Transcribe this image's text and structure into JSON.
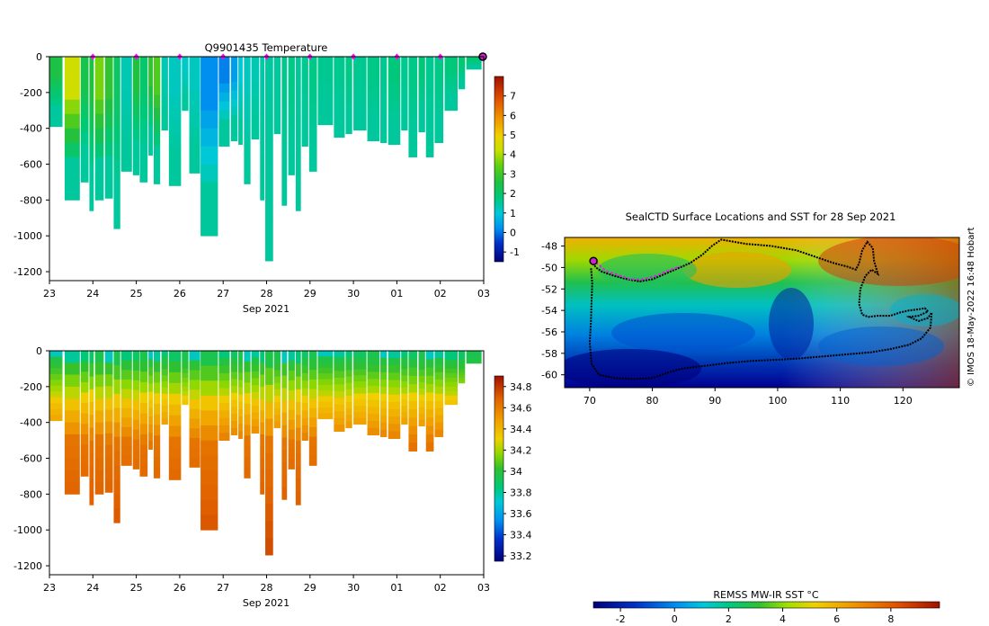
{
  "chart_data": [
    {
      "type": "heatmap",
      "title": "Q9901435  Temperature",
      "xlabel": "Sep 2021",
      "ylabel": "",
      "x_tick_labels": [
        "23",
        "24",
        "25",
        "26",
        "27",
        "28",
        "29",
        "30",
        "01",
        "02",
        "03"
      ],
      "y_tick_labels": [
        "0",
        "-200",
        "-400",
        "-600",
        "-800",
        "-1000",
        "-1200"
      ],
      "ylim": [
        -1250,
        0
      ],
      "colorbar": {
        "min": -1.5,
        "max": 8,
        "ticks": [
          "-1",
          "0",
          "1",
          "2",
          "3",
          "4",
          "5",
          "6",
          "7"
        ]
      },
      "profiles": [
        {
          "x": 0.0,
          "w": 0.3,
          "depth": 390,
          "surf": 2.5
        },
        {
          "x": 0.35,
          "w": 0.35,
          "depth": 800,
          "surf": 4.3
        },
        {
          "x": 0.72,
          "w": 0.18,
          "depth": 700,
          "surf": 2.4
        },
        {
          "x": 0.92,
          "w": 0.1,
          "depth": 860,
          "surf": 2.6
        },
        {
          "x": 1.05,
          "w": 0.2,
          "depth": 800,
          "surf": 3.6
        },
        {
          "x": 1.28,
          "w": 0.18,
          "depth": 790,
          "surf": 2.8
        },
        {
          "x": 1.48,
          "w": 0.15,
          "depth": 960,
          "surf": 2.1
        },
        {
          "x": 1.65,
          "w": 0.25,
          "depth": 640,
          "surf": 1.3
        },
        {
          "x": 1.92,
          "w": 0.15,
          "depth": 660,
          "surf": 2.6
        },
        {
          "x": 2.08,
          "w": 0.18,
          "depth": 700,
          "surf": 2.0
        },
        {
          "x": 2.28,
          "w": 0.1,
          "depth": 550,
          "surf": 2.8
        },
        {
          "x": 2.4,
          "w": 0.15,
          "depth": 710,
          "surf": 3.2
        },
        {
          "x": 2.58,
          "w": 0.15,
          "depth": 410,
          "surf": 1.3
        },
        {
          "x": 2.75,
          "w": 0.28,
          "depth": 720,
          "surf": 1.2
        },
        {
          "x": 3.05,
          "w": 0.15,
          "depth": 300,
          "surf": 1.1
        },
        {
          "x": 3.22,
          "w": 0.25,
          "depth": 650,
          "surf": 1.2
        },
        {
          "x": 3.48,
          "w": 0.4,
          "depth": 1000,
          "surf": 0.2
        },
        {
          "x": 3.9,
          "w": 0.25,
          "depth": 500,
          "surf": 0.1
        },
        {
          "x": 4.18,
          "w": 0.15,
          "depth": 470,
          "surf": 0.4
        },
        {
          "x": 4.35,
          "w": 0.1,
          "depth": 490,
          "surf": 1.0
        },
        {
          "x": 4.48,
          "w": 0.15,
          "depth": 710,
          "surf": 1.2
        },
        {
          "x": 4.65,
          "w": 0.18,
          "depth": 460,
          "surf": 1.3
        },
        {
          "x": 4.85,
          "w": 0.1,
          "depth": 800,
          "surf": 1.4
        },
        {
          "x": 4.97,
          "w": 0.18,
          "depth": 1140,
          "surf": 1.5
        },
        {
          "x": 5.17,
          "w": 0.15,
          "depth": 430,
          "surf": 1.5
        },
        {
          "x": 5.35,
          "w": 0.12,
          "depth": 830,
          "surf": 1.6
        },
        {
          "x": 5.5,
          "w": 0.15,
          "depth": 660,
          "surf": 1.7
        },
        {
          "x": 5.67,
          "w": 0.12,
          "depth": 860,
          "surf": 1.5
        },
        {
          "x": 5.81,
          "w": 0.15,
          "depth": 500,
          "surf": 1.6
        },
        {
          "x": 5.98,
          "w": 0.18,
          "depth": 640,
          "surf": 1.7
        },
        {
          "x": 6.18,
          "w": 0.35,
          "depth": 380,
          "surf": 1.6
        },
        {
          "x": 6.55,
          "w": 0.25,
          "depth": 450,
          "surf": 1.6
        },
        {
          "x": 6.82,
          "w": 0.15,
          "depth": 430,
          "surf": 1.7
        },
        {
          "x": 7.0,
          "w": 0.3,
          "depth": 410,
          "surf": 1.6
        },
        {
          "x": 7.32,
          "w": 0.28,
          "depth": 470,
          "surf": 1.7
        },
        {
          "x": 7.62,
          "w": 0.15,
          "depth": 480,
          "surf": 1.6
        },
        {
          "x": 7.8,
          "w": 0.28,
          "depth": 490,
          "surf": 1.8
        },
        {
          "x": 8.1,
          "w": 0.15,
          "depth": 410,
          "surf": 1.6
        },
        {
          "x": 8.27,
          "w": 0.2,
          "depth": 560,
          "surf": 1.7
        },
        {
          "x": 8.5,
          "w": 0.15,
          "depth": 420,
          "surf": 1.8
        },
        {
          "x": 8.67,
          "w": 0.18,
          "depth": 560,
          "surf": 1.6
        },
        {
          "x": 8.87,
          "w": 0.2,
          "depth": 480,
          "surf": 1.7
        },
        {
          "x": 9.1,
          "w": 0.3,
          "depth": 300,
          "surf": 1.8
        },
        {
          "x": 9.42,
          "w": 0.15,
          "depth": 180,
          "surf": 1.9
        },
        {
          "x": 9.6,
          "w": 0.35,
          "depth": 70,
          "surf": 1.9
        }
      ],
      "marker_days": [
        1,
        2,
        3,
        4,
        5,
        6,
        7,
        8,
        9
      ]
    },
    {
      "type": "heatmap",
      "title": "",
      "xlabel": "Sep 2021",
      "ylabel": "",
      "variable": "salinity",
      "x_tick_labels": [
        "23",
        "24",
        "25",
        "26",
        "27",
        "28",
        "29",
        "30",
        "01",
        "02",
        "03"
      ],
      "y_tick_labels": [
        "0",
        "-200",
        "-400",
        "-600",
        "-800",
        "-1000",
        "-1200"
      ],
      "ylim": [
        -1250,
        0
      ],
      "colorbar": {
        "min": 33.15,
        "max": 34.9,
        "ticks": [
          "33.2",
          "33.4",
          "33.6",
          "33.8",
          "34",
          "34.2",
          "34.4",
          "34.6",
          "34.8"
        ]
      }
    },
    {
      "type": "heatmap",
      "title": "SealCTD Surface Locations and SST for 28 Sep 2021",
      "xlabel": "",
      "ylabel": "",
      "x_tick_labels": [
        "70",
        "80",
        "90",
        "100",
        "110",
        "120"
      ],
      "y_tick_labels": [
        "-48",
        "-50",
        "-52",
        "-54",
        "-56",
        "-58",
        "-60"
      ],
      "xlim": [
        66,
        129
      ],
      "ylim": [
        -61.2,
        -47.2
      ],
      "credit": "© IMOS 18-May-2022 16:48 Hobart",
      "colorbar": {
        "label": "REMSS MW-IR SST °C",
        "min": -3,
        "max": 9.8,
        "ticks": [
          "-2",
          "0",
          "2",
          "4",
          "6",
          "8"
        ]
      },
      "track": [
        [
          70.5,
          -49.6
        ],
        [
          71,
          -50
        ],
        [
          72,
          -50.4
        ],
        [
          74,
          -50.8
        ],
        [
          76,
          -51.1
        ],
        [
          78,
          -51.3
        ],
        [
          80,
          -51.1
        ],
        [
          82,
          -50.6
        ],
        [
          84,
          -50.1
        ],
        [
          86,
          -49.6
        ],
        [
          88,
          -48.8
        ],
        [
          89.5,
          -48.0
        ],
        [
          91,
          -47.4
        ],
        [
          93,
          -47.6
        ],
        [
          95,
          -47.8
        ],
        [
          97,
          -47.9
        ],
        [
          99,
          -48.0
        ],
        [
          101,
          -48.2
        ],
        [
          103,
          -48.4
        ],
        [
          105,
          -48.8
        ],
        [
          107,
          -49.2
        ],
        [
          109,
          -49.6
        ],
        [
          111,
          -49.9
        ],
        [
          112.5,
          -50.2
        ],
        [
          113,
          -49.6
        ],
        [
          113.5,
          -48.4
        ],
        [
          114.3,
          -47.6
        ],
        [
          115.2,
          -48.2
        ],
        [
          115.4,
          -49.4
        ],
        [
          116,
          -50.6
        ],
        [
          115,
          -50.2
        ],
        [
          114,
          -50.8
        ],
        [
          113.2,
          -52.0
        ],
        [
          113,
          -53.4
        ],
        [
          113.5,
          -54.4
        ],
        [
          114.5,
          -54.6
        ],
        [
          116,
          -54.5
        ],
        [
          118,
          -54.5
        ],
        [
          119.5,
          -54.2
        ],
        [
          121,
          -54.0
        ],
        [
          122.5,
          -53.9
        ],
        [
          123.5,
          -53.8
        ],
        [
          124,
          -54.1
        ],
        [
          122.5,
          -54.5
        ],
        [
          121,
          -54.6
        ],
        [
          122.5,
          -55.0
        ],
        [
          124,
          -54.7
        ],
        [
          124.6,
          -54.2
        ],
        [
          124.4,
          -55.6
        ],
        [
          123,
          -56.6
        ],
        [
          121,
          -57.2
        ],
        [
          118,
          -57.6
        ],
        [
          115,
          -57.9
        ],
        [
          111,
          -58.1
        ],
        [
          107,
          -58.3
        ],
        [
          103,
          -58.5
        ],
        [
          100,
          -58.6
        ],
        [
          96,
          -58.7
        ],
        [
          92,
          -58.9
        ],
        [
          88,
          -59.2
        ],
        [
          85,
          -59.4
        ],
        [
          83,
          -59.7
        ],
        [
          80,
          -60.3
        ],
        [
          77,
          -60.4
        ],
        [
          74,
          -60.3
        ],
        [
          71.5,
          -60.0
        ],
        [
          70.3,
          -59.0
        ],
        [
          70.0,
          -57.0
        ],
        [
          70.2,
          -55.0
        ],
        [
          70.3,
          -53.0
        ],
        [
          70.4,
          -51.5
        ],
        [
          70.2,
          -50.0
        ]
      ],
      "recent_track": [
        [
          70.3,
          -49.4
        ],
        [
          71.4,
          -49.7
        ],
        [
          72.5,
          -50.3
        ],
        [
          74.5,
          -50.7
        ],
        [
          76.5,
          -51.1
        ],
        [
          78.5,
          -51.1
        ],
        [
          80.5,
          -50.8
        ],
        [
          82.5,
          -50.3
        ],
        [
          84.5,
          -49.9
        ]
      ],
      "current_position": [
        70.6,
        -49.4
      ]
    }
  ]
}
